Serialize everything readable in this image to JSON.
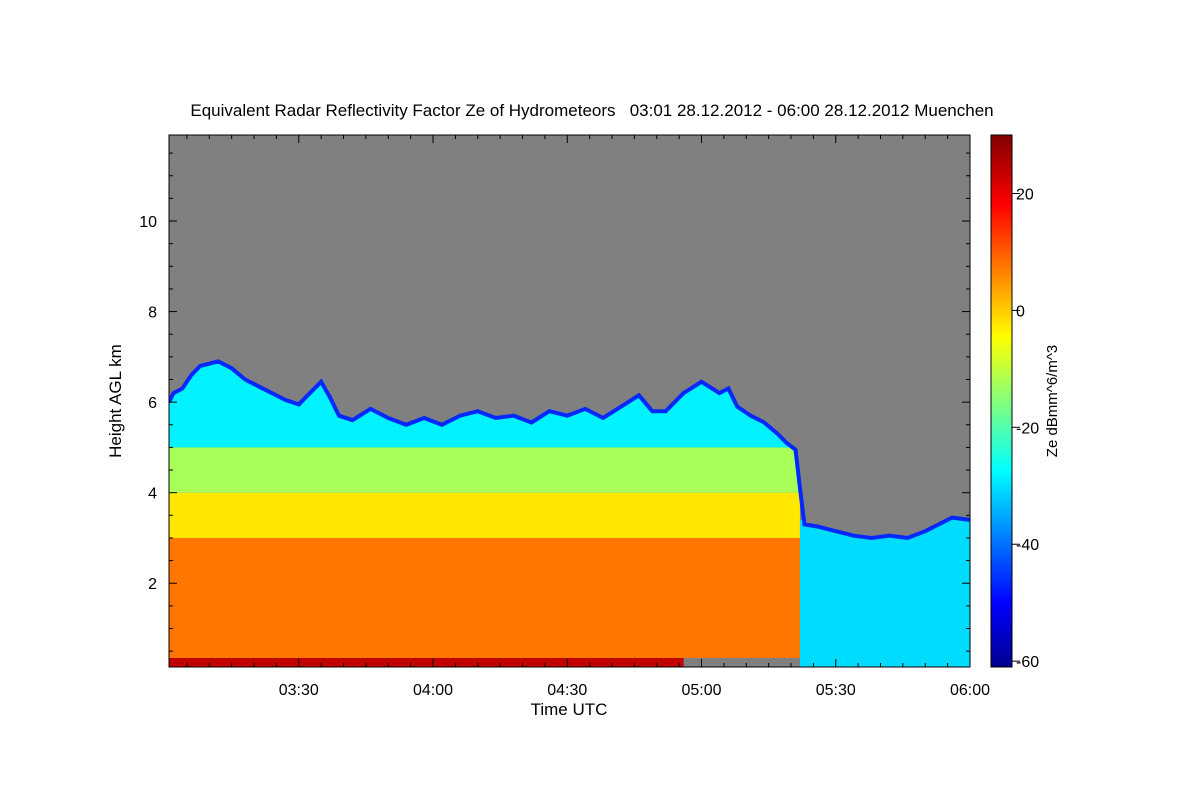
{
  "chart_data": {
    "type": "heatmap",
    "title": "Equivalent Radar Reflectivity Factor Ze of Hydrometeors   03:01 28.12.2012 - 06:00 28.12.2012 Muenchen",
    "xlabel": "Time UTC",
    "ylabel": "Height AGL km",
    "x_ticks": [
      "03:30",
      "04:00",
      "04:30",
      "05:00",
      "05:30",
      "06:00"
    ],
    "x_tick_minutes": [
      210,
      240,
      270,
      300,
      330,
      360
    ],
    "xlim_minutes": [
      181,
      360
    ],
    "y_ticks": [
      2,
      4,
      6,
      8,
      10
    ],
    "ylim": [
      0.15,
      11.9
    ],
    "no_signal_color": "#808080",
    "colorbar": {
      "label": "Ze dBmm^6/m^3",
      "ticks": [
        20,
        0,
        -20,
        -40,
        -60
      ],
      "range": [
        -61,
        30
      ],
      "colormap": "jet"
    },
    "cloud_top_km": [
      [
        181,
        6.0
      ],
      [
        182,
        6.2
      ],
      [
        184,
        6.3
      ],
      [
        186,
        6.6
      ],
      [
        188,
        6.8
      ],
      [
        192,
        6.9
      ],
      [
        195,
        6.75
      ],
      [
        198,
        6.5
      ],
      [
        201,
        6.35
      ],
      [
        204,
        6.2
      ],
      [
        207,
        6.05
      ],
      [
        210,
        5.95
      ],
      [
        212,
        6.15
      ],
      [
        215,
        6.45
      ],
      [
        217,
        6.1
      ],
      [
        219,
        5.7
      ],
      [
        222,
        5.6
      ],
      [
        226,
        5.85
      ],
      [
        230,
        5.65
      ],
      [
        234,
        5.5
      ],
      [
        238,
        5.65
      ],
      [
        242,
        5.5
      ],
      [
        246,
        5.7
      ],
      [
        250,
        5.8
      ],
      [
        254,
        5.65
      ],
      [
        258,
        5.7
      ],
      [
        262,
        5.55
      ],
      [
        266,
        5.8
      ],
      [
        270,
        5.7
      ],
      [
        274,
        5.85
      ],
      [
        278,
        5.65
      ],
      [
        282,
        5.9
      ],
      [
        286,
        6.15
      ],
      [
        289,
        5.8
      ],
      [
        292,
        5.8
      ],
      [
        296,
        6.2
      ],
      [
        300,
        6.45
      ],
      [
        304,
        6.2
      ],
      [
        306,
        6.3
      ],
      [
        308,
        5.9
      ],
      [
        311,
        5.7
      ],
      [
        314,
        5.55
      ],
      [
        317,
        5.3
      ],
      [
        319,
        5.1
      ],
      [
        321,
        4.95
      ],
      [
        322,
        4.1
      ],
      [
        323,
        3.3
      ],
      [
        326,
        3.25
      ],
      [
        330,
        3.15
      ],
      [
        334,
        3.05
      ],
      [
        338,
        3.0
      ],
      [
        342,
        3.05
      ],
      [
        346,
        3.0
      ],
      [
        350,
        3.15
      ],
      [
        353,
        3.3
      ],
      [
        356,
        3.45
      ],
      [
        360,
        3.4
      ]
    ],
    "layers_dbz": [
      {
        "from_km": 0.15,
        "to_km": 0.35,
        "t_start": 181,
        "t_end": 296,
        "dbz": 24
      },
      {
        "from_km": 0.35,
        "to_km": 3.0,
        "t_start": 181,
        "t_end": 322,
        "dbz": 8
      },
      {
        "from_km": 3.0,
        "to_km": 4.0,
        "t_start": 181,
        "t_end": 322,
        "dbz": -2
      },
      {
        "from_km": 4.0,
        "to_km": 5.0,
        "t_start": 181,
        "t_end": 322,
        "dbz": -12
      },
      {
        "from_km": 5.0,
        "to_km": 6.9,
        "t_start": 181,
        "t_end": 322,
        "dbz": -28
      },
      {
        "from_km": 0.15,
        "to_km": 3.4,
        "t_start": 322,
        "t_end": 360,
        "dbz": -30
      }
    ]
  }
}
